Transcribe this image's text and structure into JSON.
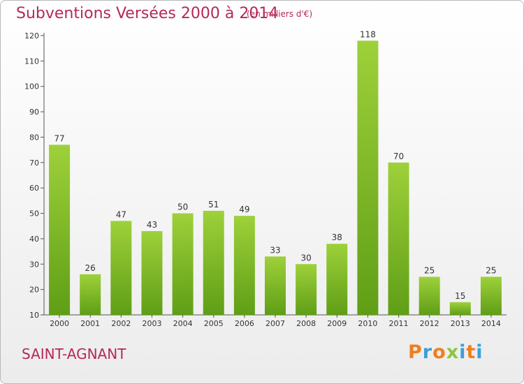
{
  "header": {
    "title": "Subventions Versées 2000 à 2014",
    "unit_note": "(en milliers d'€)"
  },
  "footer": {
    "commune": "SAINT-AGNANT",
    "logo": [
      "P",
      "r",
      "o",
      "x",
      "i",
      "t",
      "i"
    ]
  },
  "colors": {
    "title": "#b5285a",
    "bar_light": "#9ed13a",
    "bar_dark": "#5f9e16",
    "logo": [
      "#f07e1c",
      "#3b9fd8",
      "#f07e1c",
      "#8cc63f",
      "#3b9fd8",
      "#f07e1c",
      "#3b9fd8"
    ]
  },
  "chart_data": {
    "type": "bar",
    "title": "Subventions Versées 2000 à 2014",
    "categories": [
      "2000",
      "2001",
      "2002",
      "2003",
      "2004",
      "2005",
      "2006",
      "2007",
      "2008",
      "2009",
      "2010",
      "2011",
      "2012",
      "2013",
      "2014"
    ],
    "values": [
      77,
      26,
      47,
      43,
      50,
      51,
      49,
      33,
      30,
      38,
      118,
      70,
      25,
      15,
      25
    ],
    "ylim": [
      10,
      120
    ],
    "yticks": [
      10,
      20,
      30,
      40,
      50,
      60,
      70,
      80,
      90,
      100,
      110,
      120
    ],
    "grid": false,
    "data_labels": true
  }
}
